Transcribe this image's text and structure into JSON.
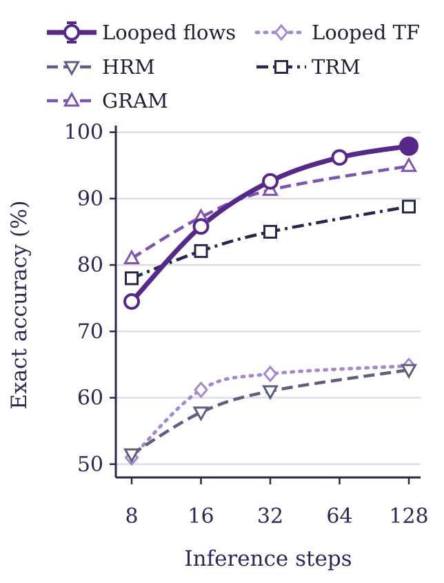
{
  "chart_data": {
    "type": "line",
    "xlabel": "Inference steps",
    "ylabel": "Exact accuracy (%)",
    "x_scale": "log2",
    "x": [
      8,
      16,
      32,
      64,
      128
    ],
    "x_tick_labels": [
      "8",
      "16",
      "32",
      "64",
      "128"
    ],
    "ylim": [
      48,
      101
    ],
    "y_ticks": [
      50,
      60,
      70,
      80,
      90,
      100
    ],
    "y_tick_labels": [
      "50",
      "60",
      "70",
      "80",
      "90",
      "100"
    ],
    "grid": "horizontal",
    "legend_position": "top",
    "series": [
      {
        "name": "Looped flows",
        "x": [
          8,
          16,
          32,
          64,
          128
        ],
        "values": [
          74.5,
          85.8,
          92.6,
          96.2,
          97.9
        ],
        "color": "#55288a",
        "style": "solid",
        "marker": "circle-open",
        "last_marker_filled": true
      },
      {
        "name": "HRM",
        "x": [
          8,
          16,
          32,
          64,
          128
        ],
        "values": [
          51.5,
          57.8,
          61.0,
          null,
          64.2
        ],
        "color": "#5e5e7e",
        "style": "dashed",
        "marker": "triangle-down-open"
      },
      {
        "name": "GRAM",
        "x": [
          8,
          16,
          32,
          64,
          128
        ],
        "values": [
          81.0,
          87.2,
          91.3,
          null,
          94.9
        ],
        "color": "#7c55ad",
        "style": "dashed",
        "marker": "triangle-up-open"
      },
      {
        "name": "Looped TF",
        "x": [
          8,
          16,
          32,
          64,
          128
        ],
        "values": [
          51.0,
          61.2,
          63.6,
          null,
          64.8
        ],
        "color": "#a688cc",
        "style": "dotted",
        "marker": "diamond-open"
      },
      {
        "name": "TRM",
        "x": [
          8,
          16,
          32,
          64,
          128
        ],
        "values": [
          78.0,
          82.1,
          85.0,
          null,
          88.8
        ],
        "color": "#26284a",
        "style": "dashdot",
        "marker": "square-open"
      }
    ]
  }
}
